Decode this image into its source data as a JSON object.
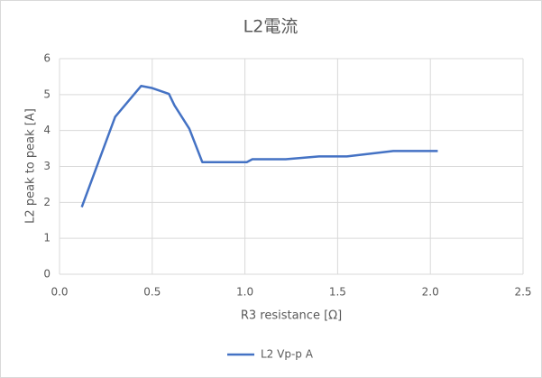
{
  "chart_data": {
    "type": "line",
    "title": "L2電流",
    "x_label": "R3 resistance [Ω]",
    "y_label": "L2 peak to peak  [A]",
    "series": [
      {
        "name": "L2 Vp-p A",
        "color": "#4472c4",
        "x": [
          0.12,
          0.3,
          0.44,
          0.5,
          0.59,
          0.62,
          0.7,
          0.77,
          1.01,
          1.04,
          1.22,
          1.4,
          1.55,
          1.8,
          2.04
        ],
        "values": [
          1.87,
          4.38,
          5.24,
          5.18,
          5.02,
          4.7,
          4.05,
          3.12,
          3.12,
          3.2,
          3.2,
          3.28,
          3.28,
          3.43,
          3.43
        ]
      }
    ],
    "xlim": [
      0,
      2.5
    ],
    "xticks": [
      {
        "value": 0,
        "label": "0.0"
      },
      {
        "value": 0.5,
        "label": "0.5"
      },
      {
        "value": 1,
        "label": "1.0"
      },
      {
        "value": 1.5,
        "label": "1.5"
      },
      {
        "value": 2,
        "label": "2.0"
      },
      {
        "value": 2.5,
        "label": "2.5"
      }
    ],
    "ylim": [
      0,
      6
    ],
    "yticks": [
      0,
      1,
      2,
      3,
      4,
      5,
      6
    ],
    "grid": true,
    "legend": "bottom"
  }
}
